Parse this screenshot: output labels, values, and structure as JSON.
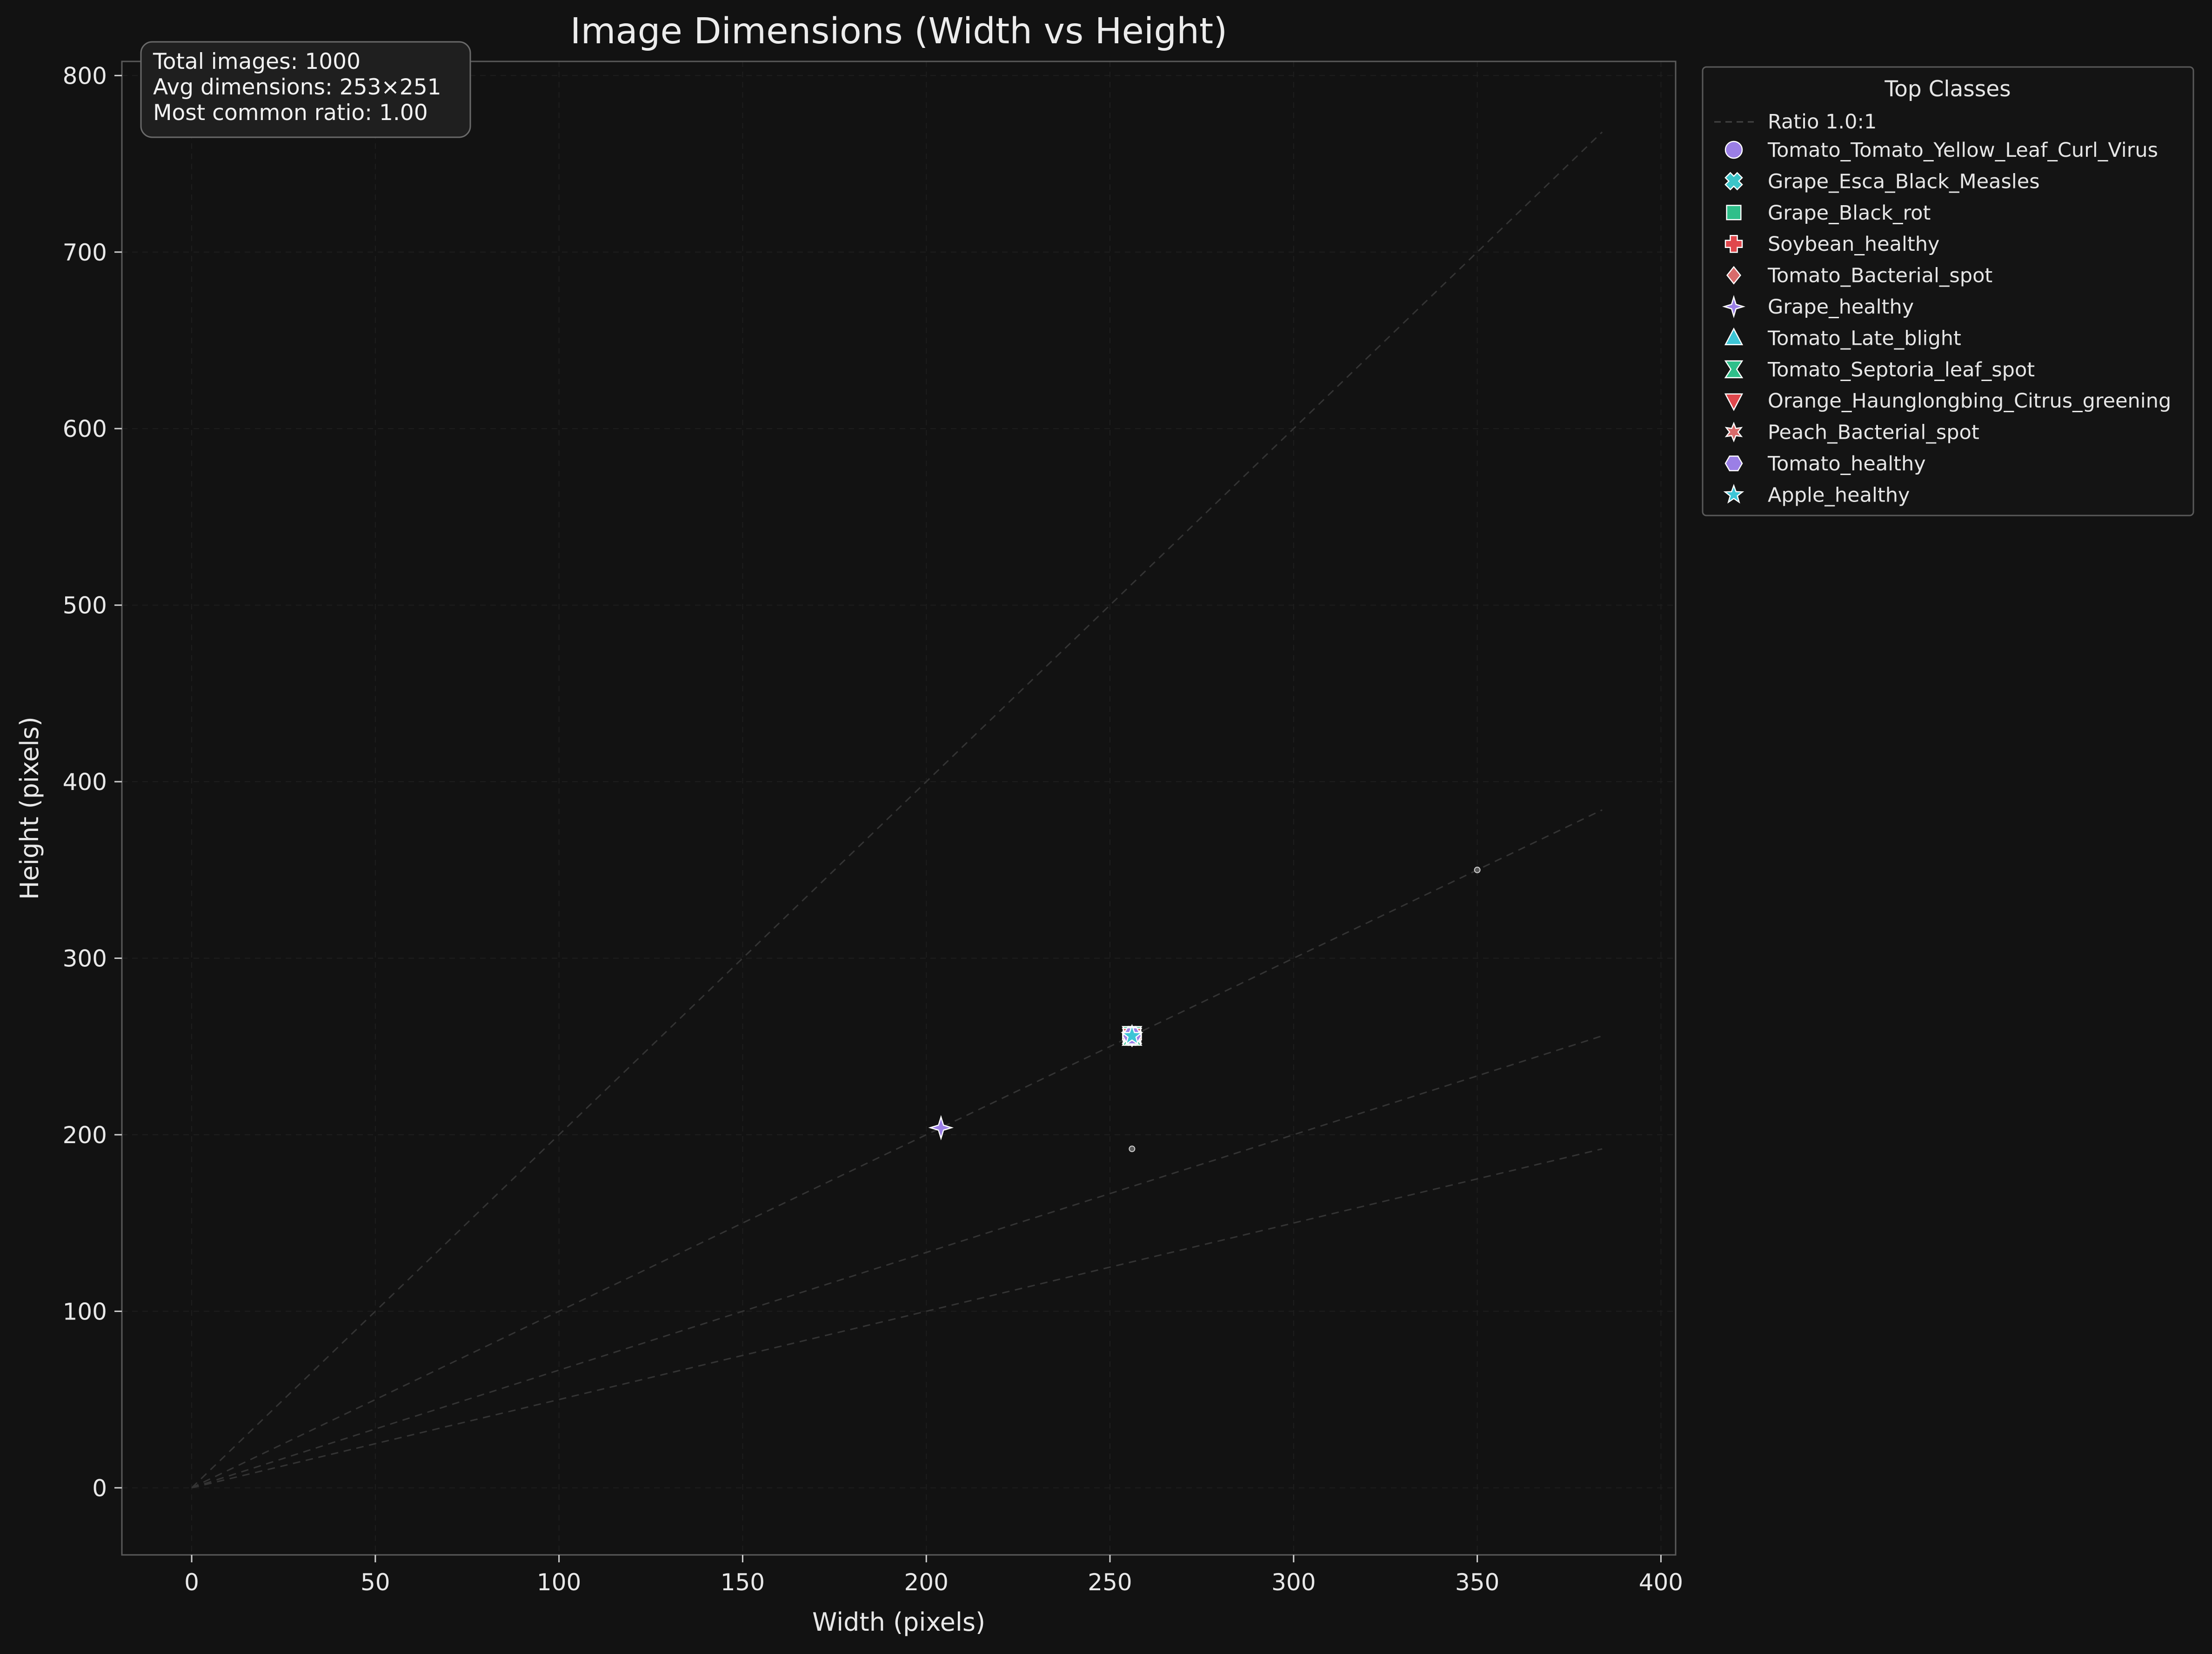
{
  "chart_data": {
    "type": "scatter",
    "title": "Image Dimensions (Width vs Height)",
    "xlabel": "Width (pixels)",
    "ylabel": "Height (pixels)",
    "xlim": [
      -19,
      404
    ],
    "ylim": [
      -38,
      808
    ],
    "xticks": [
      0,
      50,
      100,
      150,
      200,
      250,
      300,
      350,
      400
    ],
    "yticks": [
      0,
      100,
      200,
      300,
      400,
      500,
      600,
      700,
      800
    ],
    "grid": true,
    "stats": [
      "Total images: 1000",
      "Avg dimensions: 253×251",
      "Most common ratio: 1.00"
    ],
    "ratio_lines": [
      {
        "ratio": 2.0,
        "x_max": 384
      },
      {
        "ratio": 1.0,
        "x_max": 384
      },
      {
        "ratio": 0.6667,
        "x_max": 384
      },
      {
        "ratio": 0.5,
        "x_max": 384
      }
    ],
    "other_points": [
      {
        "x": 350,
        "y": 350
      },
      {
        "x": 256,
        "y": 192
      }
    ],
    "legend": {
      "title": "Top Classes",
      "placement": "outside-right-top",
      "ratio_entry": "Ratio 1.0:1"
    },
    "series": [
      {
        "name": "Tomato_Tomato_Yellow_Leaf_Curl_Virus",
        "marker": "circle",
        "color": "#9b7fe6",
        "x": [
          256
        ],
        "y": [
          256
        ]
      },
      {
        "name": "Grape_Esca_Black_Measles",
        "marker": "x",
        "color": "#3cc5c9",
        "x": [
          256
        ],
        "y": [
          256
        ]
      },
      {
        "name": "Grape_Black_rot",
        "marker": "square",
        "color": "#2fbf8a",
        "x": [
          256
        ],
        "y": [
          256
        ]
      },
      {
        "name": "Soybean_healthy",
        "marker": "plus",
        "color": "#e0474c",
        "x": [
          256
        ],
        "y": [
          256
        ]
      },
      {
        "name": "Tomato_Bacterial_spot",
        "marker": "diamond",
        "color": "#d86b6b",
        "x": [
          256
        ],
        "y": [
          256
        ]
      },
      {
        "name": "Grape_healthy",
        "marker": "star4",
        "color": "#9b7fe6",
        "x": [
          204
        ],
        "y": [
          204
        ]
      },
      {
        "name": "Tomato_Late_blight",
        "marker": "triangle-up",
        "color": "#3cc5d6",
        "x": [
          256
        ],
        "y": [
          256
        ]
      },
      {
        "name": "Tomato_Septoria_leaf_spot",
        "marker": "hourglass",
        "color": "#2fbf8a",
        "x": [
          256
        ],
        "y": [
          256
        ]
      },
      {
        "name": "Orange_Haunglongbing_Citrus_greening",
        "marker": "triangle-down",
        "color": "#e0474c",
        "x": [
          256
        ],
        "y": [
          256
        ]
      },
      {
        "name": "Peach_Bacterial_spot",
        "marker": "star6",
        "color": "#d86b6b",
        "x": [
          256
        ],
        "y": [
          256
        ]
      },
      {
        "name": "Tomato_healthy",
        "marker": "hexagon",
        "color": "#9b7fe6",
        "x": [
          256
        ],
        "y": [
          256
        ]
      },
      {
        "name": "Apple_healthy",
        "marker": "star5",
        "color": "#3cc5d6",
        "x": [
          256
        ],
        "y": [
          256
        ]
      }
    ]
  }
}
